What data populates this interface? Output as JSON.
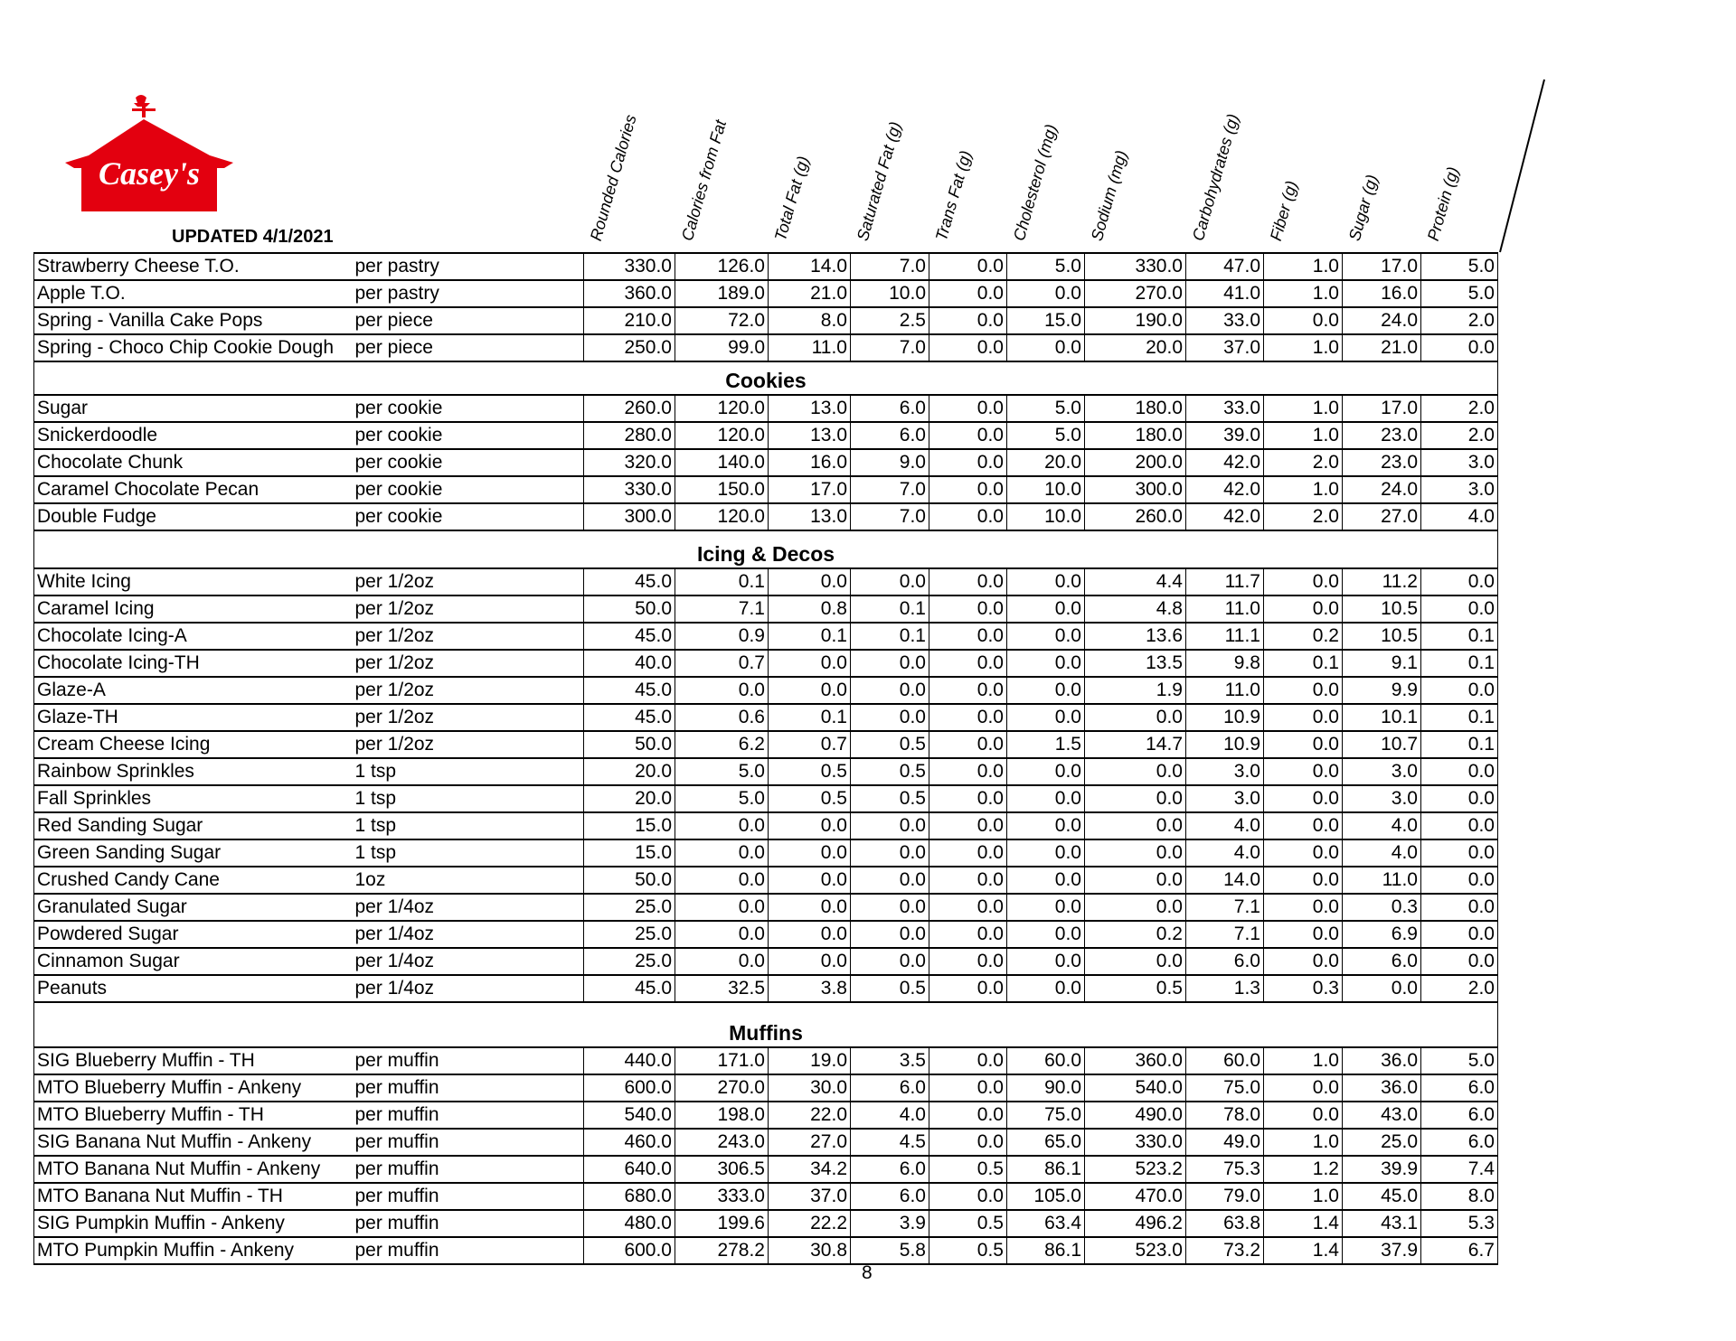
{
  "header": {
    "brand": "Casey's",
    "updated": "UPDATED 4/1/2021",
    "brand_color": "#e3000f",
    "columns": [
      "Rounded Calories",
      "Calories from Fat",
      "Total Fat (g)",
      "Saturated Fat (g)",
      "Trans Fat (g)",
      "Cholesterol (mg)",
      "Sodium (mg)",
      "Carbohydrates (g)",
      "Fiber (g)",
      "Sugar (g)",
      "Protein (g)"
    ]
  },
  "sections": [
    {
      "title": "",
      "rows": [
        [
          "Strawberry Cheese T.O.",
          "per pastry",
          "330.0",
          "126.0",
          "14.0",
          "7.0",
          "0.0",
          "5.0",
          "330.0",
          "47.0",
          "1.0",
          "17.0",
          "5.0"
        ],
        [
          "Apple T.O.",
          "per pastry",
          "360.0",
          "189.0",
          "21.0",
          "10.0",
          "0.0",
          "0.0",
          "270.0",
          "41.0",
          "1.0",
          "16.0",
          "5.0"
        ],
        [
          "Spring - Vanilla Cake Pops",
          "per piece",
          "210.0",
          "72.0",
          "8.0",
          "2.5",
          "0.0",
          "15.0",
          "190.0",
          "33.0",
          "0.0",
          "24.0",
          "2.0"
        ],
        [
          "Spring - Choco Chip Cookie Dough",
          "per piece",
          "250.0",
          "99.0",
          "11.0",
          "7.0",
          "0.0",
          "0.0",
          "20.0",
          "37.0",
          "1.0",
          "21.0",
          "0.0"
        ]
      ]
    },
    {
      "title": "Cookies",
      "rows": [
        [
          "Sugar",
          "per cookie",
          "260.0",
          "120.0",
          "13.0",
          "6.0",
          "0.0",
          "5.0",
          "180.0",
          "33.0",
          "1.0",
          "17.0",
          "2.0"
        ],
        [
          "Snickerdoodle",
          "per cookie",
          "280.0",
          "120.0",
          "13.0",
          "6.0",
          "0.0",
          "5.0",
          "180.0",
          "39.0",
          "1.0",
          "23.0",
          "2.0"
        ],
        [
          "Chocolate Chunk",
          "per cookie",
          "320.0",
          "140.0",
          "16.0",
          "9.0",
          "0.0",
          "20.0",
          "200.0",
          "42.0",
          "2.0",
          "23.0",
          "3.0"
        ],
        [
          "Caramel Chocolate Pecan",
          "per cookie",
          "330.0",
          "150.0",
          "17.0",
          "7.0",
          "0.0",
          "10.0",
          "300.0",
          "42.0",
          "1.0",
          "24.0",
          "3.0"
        ],
        [
          "Double Fudge",
          "per cookie",
          "300.0",
          "120.0",
          "13.0",
          "7.0",
          "0.0",
          "10.0",
          "260.0",
          "42.0",
          "2.0",
          "27.0",
          "4.0"
        ]
      ]
    },
    {
      "title": "Icing & Decos",
      "rows": [
        [
          "White Icing",
          "per 1/2oz",
          "45.0",
          "0.1",
          "0.0",
          "0.0",
          "0.0",
          "0.0",
          "4.4",
          "11.7",
          "0.0",
          "11.2",
          "0.0"
        ],
        [
          "Caramel Icing",
          "per 1/2oz",
          "50.0",
          "7.1",
          "0.8",
          "0.1",
          "0.0",
          "0.0",
          "4.8",
          "11.0",
          "0.0",
          "10.5",
          "0.0"
        ],
        [
          "Chocolate Icing-A",
          "per 1/2oz",
          "45.0",
          "0.9",
          "0.1",
          "0.1",
          "0.0",
          "0.0",
          "13.6",
          "11.1",
          "0.2",
          "10.5",
          "0.1"
        ],
        [
          "Chocolate Icing-TH",
          "per 1/2oz",
          "40.0",
          "0.7",
          "0.0",
          "0.0",
          "0.0",
          "0.0",
          "13.5",
          "9.8",
          "0.1",
          "9.1",
          "0.1"
        ],
        [
          "Glaze-A",
          "per 1/2oz",
          "45.0",
          "0.0",
          "0.0",
          "0.0",
          "0.0",
          "0.0",
          "1.9",
          "11.0",
          "0.0",
          "9.9",
          "0.0"
        ],
        [
          "Glaze-TH",
          "per 1/2oz",
          "45.0",
          "0.6",
          "0.1",
          "0.0",
          "0.0",
          "0.0",
          "0.0",
          "10.9",
          "0.0",
          "10.1",
          "0.1"
        ],
        [
          "Cream Cheese Icing",
          "per 1/2oz",
          "50.0",
          "6.2",
          "0.7",
          "0.5",
          "0.0",
          "1.5",
          "14.7",
          "10.9",
          "0.0",
          "10.7",
          "0.1"
        ],
        [
          "Rainbow Sprinkles",
          "1 tsp",
          "20.0",
          "5.0",
          "0.5",
          "0.5",
          "0.0",
          "0.0",
          "0.0",
          "3.0",
          "0.0",
          "3.0",
          "0.0"
        ],
        [
          "Fall Sprinkles",
          "1 tsp",
          "20.0",
          "5.0",
          "0.5",
          "0.5",
          "0.0",
          "0.0",
          "0.0",
          "3.0",
          "0.0",
          "3.0",
          "0.0"
        ],
        [
          "Red Sanding Sugar",
          "1 tsp",
          "15.0",
          "0.0",
          "0.0",
          "0.0",
          "0.0",
          "0.0",
          "0.0",
          "4.0",
          "0.0",
          "4.0",
          "0.0"
        ],
        [
          "Green Sanding Sugar",
          "1 tsp",
          "15.0",
          "0.0",
          "0.0",
          "0.0",
          "0.0",
          "0.0",
          "0.0",
          "4.0",
          "0.0",
          "4.0",
          "0.0"
        ],
        [
          "Crushed Candy Cane",
          "1oz",
          "50.0",
          "0.0",
          "0.0",
          "0.0",
          "0.0",
          "0.0",
          "0.0",
          "14.0",
          "0.0",
          "11.0",
          "0.0"
        ],
        [
          "Granulated Sugar",
          "per 1/4oz",
          "25.0",
          "0.0",
          "0.0",
          "0.0",
          "0.0",
          "0.0",
          "0.0",
          "7.1",
          "0.0",
          "0.3",
          "0.0"
        ],
        [
          "Powdered Sugar",
          "per 1/4oz",
          "25.0",
          "0.0",
          "0.0",
          "0.0",
          "0.0",
          "0.0",
          "0.2",
          "7.1",
          "0.0",
          "6.9",
          "0.0"
        ],
        [
          "Cinnamon Sugar",
          "per 1/4oz",
          "25.0",
          "0.0",
          "0.0",
          "0.0",
          "0.0",
          "0.0",
          "0.0",
          "6.0",
          "0.0",
          "6.0",
          "0.0"
        ],
        [
          "Peanuts",
          "per 1/4oz",
          "45.0",
          "32.5",
          "3.8",
          "0.5",
          "0.0",
          "0.0",
          "0.5",
          "1.3",
          "0.3",
          "0.0",
          "2.0"
        ]
      ]
    },
    {
      "title": "Muffins",
      "rows": [
        [
          "SIG Blueberry Muffin - TH",
          "per muffin",
          "440.0",
          "171.0",
          "19.0",
          "3.5",
          "0.0",
          "60.0",
          "360.0",
          "60.0",
          "1.0",
          "36.0",
          "5.0"
        ],
        [
          "MTO Blueberry Muffin - Ankeny",
          "per muffin",
          "600.0",
          "270.0",
          "30.0",
          "6.0",
          "0.0",
          "90.0",
          "540.0",
          "75.0",
          "0.0",
          "36.0",
          "6.0"
        ],
        [
          "MTO Blueberry Muffin - TH",
          "per muffin",
          "540.0",
          "198.0",
          "22.0",
          "4.0",
          "0.0",
          "75.0",
          "490.0",
          "78.0",
          "0.0",
          "43.0",
          "6.0"
        ],
        [
          "SIG Banana Nut Muffin - Ankeny",
          "per muffin",
          "460.0",
          "243.0",
          "27.0",
          "4.5",
          "0.0",
          "65.0",
          "330.0",
          "49.0",
          "1.0",
          "25.0",
          "6.0"
        ],
        [
          "MTO Banana Nut Muffin - Ankeny",
          "per muffin",
          "640.0",
          "306.5",
          "34.2",
          "6.0",
          "0.5",
          "86.1",
          "523.2",
          "75.3",
          "1.2",
          "39.9",
          "7.4"
        ],
        [
          "MTO Banana Nut Muffin - TH",
          "per muffin",
          "680.0",
          "333.0",
          "37.0",
          "6.0",
          "0.0",
          "105.0",
          "470.0",
          "79.0",
          "1.0",
          "45.0",
          "8.0"
        ],
        [
          "SIG Pumpkin Muffin - Ankeny",
          "per muffin",
          "480.0",
          "199.6",
          "22.2",
          "3.9",
          "0.5",
          "63.4",
          "496.2",
          "63.8",
          "1.4",
          "43.1",
          "5.3"
        ],
        [
          "MTO Pumpkin Muffin - Ankeny",
          "per muffin",
          "600.0",
          "278.2",
          "30.8",
          "5.8",
          "0.5",
          "86.1",
          "523.0",
          "73.2",
          "1.4",
          "37.9",
          "6.7"
        ]
      ]
    }
  ],
  "footer": {
    "page_number": "8"
  }
}
